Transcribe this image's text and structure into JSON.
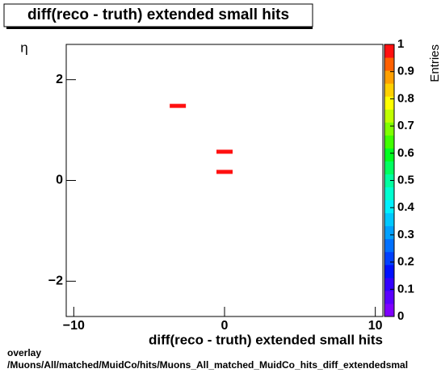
{
  "chart_data": {
    "type": "heatmap2d",
    "title": "diff(reco - truth) extended small hits",
    "x_label": "diff(reco - truth) extended small hits",
    "y_label": "η",
    "z_label": "Entries",
    "x": [
      -3.1,
      0,
      0
    ],
    "y": [
      1.48,
      0.57,
      0.17
    ],
    "values": [
      1,
      1,
      1
    ],
    "xlim": [
      -10.5,
      10.5
    ],
    "xticks": [
      {
        "value": -10,
        "label": "−10"
      },
      0,
      10
    ],
    "ylim": [
      -2.7,
      2.7
    ],
    "yticks": [
      {
        "value": -2,
        "label": "−2"
      },
      0,
      2
    ],
    "zlim": [
      0,
      1
    ],
    "zticks": [
      0,
      0.1,
      0.2,
      0.3,
      0.4,
      0.5,
      0.6,
      0.7,
      0.8,
      0.9,
      1
    ],
    "palette": [
      "#7f00ff",
      "#5a00ff",
      "#3300ff",
      "#0010ff",
      "#0040ff",
      "#0070ff",
      "#00a0ff",
      "#00c8ff",
      "#00f0ff",
      "#00ffd0",
      "#00ffa0",
      "#00ff60",
      "#00ff20",
      "#40ff00",
      "#80ff00",
      "#c0ff00",
      "#ffff00",
      "#ffd000",
      "#ffa000",
      "#ff6000",
      "#ff1010"
    ],
    "footer": [
      "overlay",
      "/Muons/All/matched/MuidCo/hits/Muons_All_matched_MuidCo_hits_diff_extendedsmal"
    ]
  }
}
